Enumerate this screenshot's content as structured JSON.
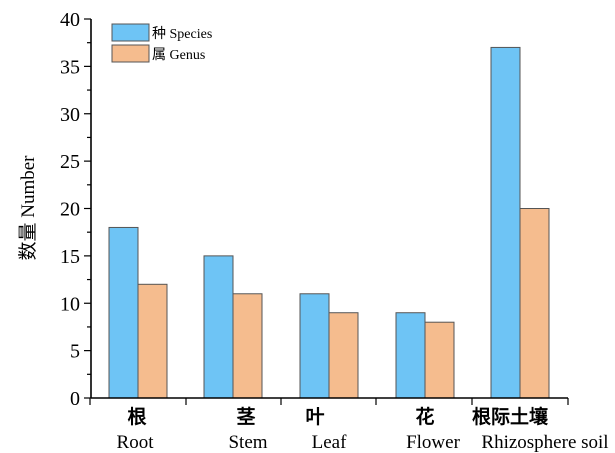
{
  "chart_data": {
    "type": "bar",
    "categories": [
      {
        "zh": "根",
        "en": "Root"
      },
      {
        "zh": "茎",
        "en": "Stem"
      },
      {
        "zh": "叶",
        "en": "Leaf"
      },
      {
        "zh": "花",
        "en": "Flower"
      },
      {
        "zh": "根际土壤",
        "en": "Rhizosphere soil"
      }
    ],
    "series": [
      {
        "name": "种 Species",
        "color": "#6EC4F5",
        "values": [
          18,
          15,
          11,
          9,
          37
        ]
      },
      {
        "name": "属 Genus",
        "color": "#F5BC8E",
        "values": [
          12,
          11,
          9,
          8,
          20
        ]
      }
    ],
    "title": "",
    "xlabel": "",
    "ylabel": "数量 Number",
    "ylim": [
      0,
      40
    ],
    "yticks": [
      "0",
      "5",
      "10",
      "15",
      "20",
      "25",
      "30",
      "35",
      "40"
    ],
    "grid": false,
    "legend_position": "top-left"
  }
}
